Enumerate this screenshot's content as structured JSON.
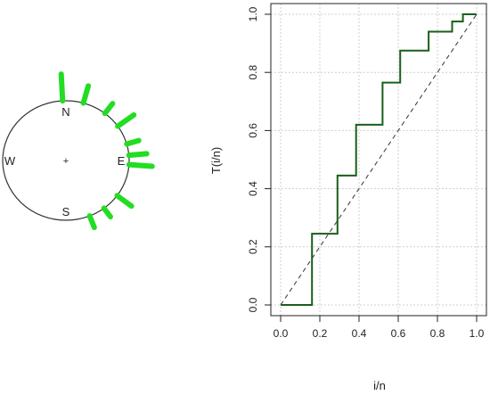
{
  "circular_plot": {
    "directions": {
      "north": "N",
      "east": "E",
      "south": "S",
      "west": "W"
    },
    "center_mark": "+",
    "bar_color": "#22dd22",
    "bars": [
      {
        "angle_deg": -3,
        "length": 0.3
      },
      {
        "angle_deg": 16,
        "length": 0.2
      },
      {
        "angle_deg": 38,
        "length": 0.14
      },
      {
        "angle_deg": 55,
        "length": 0.22
      },
      {
        "angle_deg": 74,
        "length": 0.14
      },
      {
        "angle_deg": 85,
        "length": 0.2
      },
      {
        "angle_deg": 94,
        "length": 0.26
      },
      {
        "angle_deg": 126,
        "length": 0.2
      },
      {
        "angle_deg": 143,
        "length": 0.12
      },
      {
        "angle_deg": 158,
        "length": 0.14
      }
    ]
  },
  "chart_data": {
    "type": "line",
    "xlabel": "i/n",
    "ylabel": "T(i/n)",
    "xlim": [
      0,
      1
    ],
    "ylim": [
      0,
      1
    ],
    "x_ticks": [
      "0.0",
      "0.2",
      "0.4",
      "0.6",
      "0.8",
      "1.0"
    ],
    "y_ticks": [
      "0.0",
      "0.2",
      "0.4",
      "0.6",
      "0.8",
      "1.0"
    ],
    "grid": true,
    "series": [
      {
        "style": "step",
        "color": "#1a5e1a",
        "x": [
          0.0,
          0.16,
          0.16,
          0.29,
          0.29,
          0.385,
          0.385,
          0.52,
          0.52,
          0.61,
          0.61,
          0.755,
          0.755,
          0.875,
          0.875,
          0.93,
          0.93,
          0.965,
          0.965,
          1.0
        ],
        "y": [
          0.0,
          0.0,
          0.245,
          0.245,
          0.445,
          0.445,
          0.62,
          0.62,
          0.765,
          0.765,
          0.875,
          0.875,
          0.94,
          0.94,
          0.975,
          0.975,
          1.0,
          1.0,
          1.0,
          1.0
        ]
      },
      {
        "style": "dashed",
        "color": "#444444",
        "x": [
          0,
          1
        ],
        "y": [
          0,
          1
        ]
      }
    ]
  }
}
